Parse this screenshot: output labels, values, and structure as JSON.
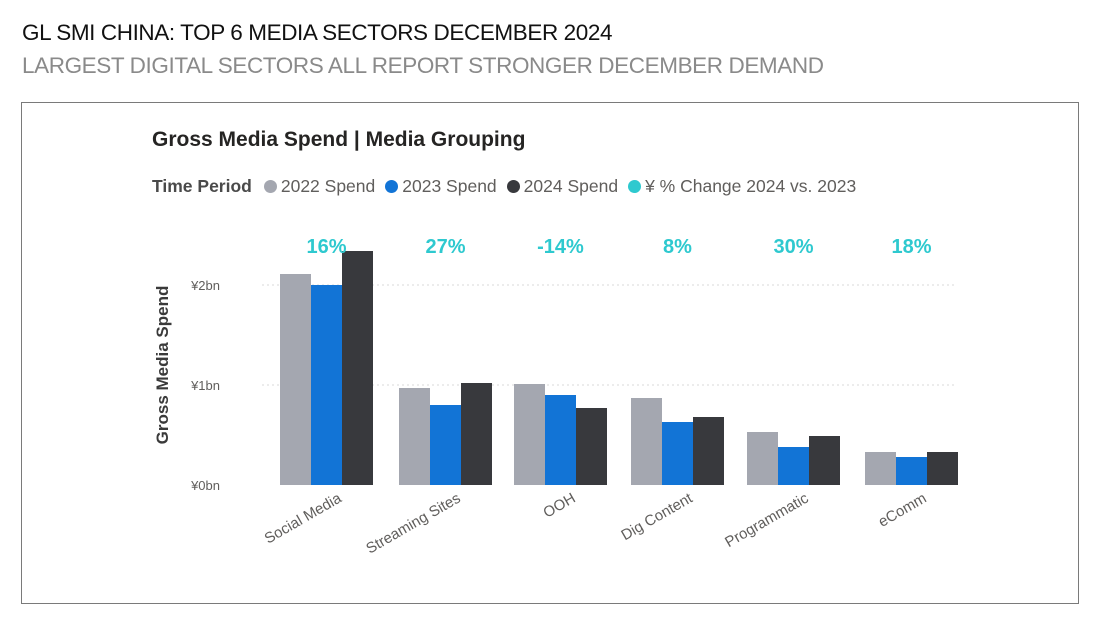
{
  "page": {
    "headline": "GL SMI CHINA: TOP 6 MEDIA SECTORS DECEMBER 2024",
    "subheadline": "LARGEST DIGITAL SECTORS ALL REPORT STRONGER DECEMBER DEMAND"
  },
  "colors": {
    "s2022": "#a4a7b0",
    "s2023": "#1274d6",
    "s2024": "#38393d",
    "pct": "#2ec9cf"
  },
  "chart_data": {
    "type": "bar",
    "title": "Gross Media Spend | Media Grouping",
    "legend_title": "Time Period",
    "legend_position": "top-left",
    "ylabel": "Gross Media Spend",
    "xlabel": "",
    "ylim": [
      0,
      2.35
    ],
    "y_ticks": [
      {
        "value": 0,
        "label": "¥0bn"
      },
      {
        "value": 1,
        "label": "¥1bn"
      },
      {
        "value": 2,
        "label": "¥2bn"
      }
    ],
    "grid": true,
    "categories": [
      "Social Media",
      "Streaming Sites",
      "OOH",
      "Dig Content",
      "Programmatic",
      "eComm"
    ],
    "series": [
      {
        "name": "2022 Spend",
        "values": [
          2.11,
          0.97,
          1.01,
          0.87,
          0.53,
          0.33
        ]
      },
      {
        "name": "2023 Spend",
        "values": [
          2.0,
          0.8,
          0.9,
          0.63,
          0.38,
          0.28
        ]
      },
      {
        "name": "2024 Spend",
        "values": [
          2.34,
          1.02,
          0.77,
          0.68,
          0.49,
          0.33
        ]
      }
    ],
    "pct_change": {
      "name": "¥ % Change 2024 vs. 2023",
      "labels": [
        "16%",
        "27%",
        "-14%",
        "8%",
        "30%",
        "18%"
      ]
    }
  }
}
